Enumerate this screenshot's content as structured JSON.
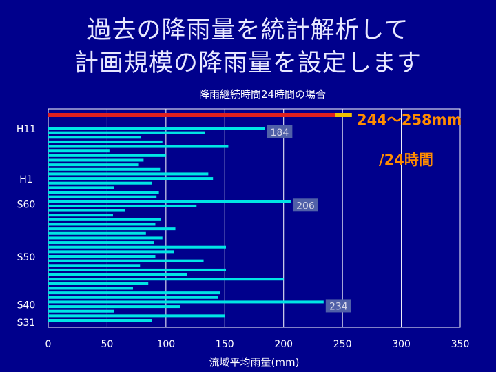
{
  "title": {
    "line1": "過去の降雨量を統計解析して",
    "line2": "計画規模の降雨量を設定します"
  },
  "chart_data": {
    "type": "bar",
    "orientation": "horizontal",
    "subtitle": "降雨継続時間24時間の場合",
    "xlabel": "流域平均雨量(mm)",
    "xlim": [
      0,
      350
    ],
    "xticks": [
      0,
      50,
      100,
      150,
      200,
      250,
      300,
      350
    ],
    "grid": "vertical",
    "y_tick_labels": [
      "H11",
      "H1",
      "S60",
      "S50",
      "S40",
      "S31"
    ],
    "values": [
      184,
      133,
      79,
      97,
      153,
      52,
      100,
      81,
      77,
      95,
      136,
      140,
      88,
      56,
      94,
      92,
      206,
      126,
      65,
      55,
      96,
      91,
      108,
      83,
      97,
      90,
      151,
      107,
      91,
      132,
      78,
      151,
      118,
      200,
      85,
      72,
      146,
      144,
      234,
      112,
      56,
      150,
      88
    ],
    "data_labels": [
      {
        "index": 0,
        "text": "184"
      },
      {
        "index": 16,
        "text": "206"
      },
      {
        "index": 38,
        "text": "234"
      }
    ],
    "plan_range": {
      "low": 244,
      "high": 258,
      "label_line1": "244～258mm",
      "label_line2": "/24時間"
    },
    "colors": {
      "bar": "#00e5e5",
      "plan_line": "#e02020",
      "plan_range": "#f0c000",
      "plan_text": "#ff8c00",
      "grid": "#ffffff",
      "background": "#00008c"
    }
  }
}
